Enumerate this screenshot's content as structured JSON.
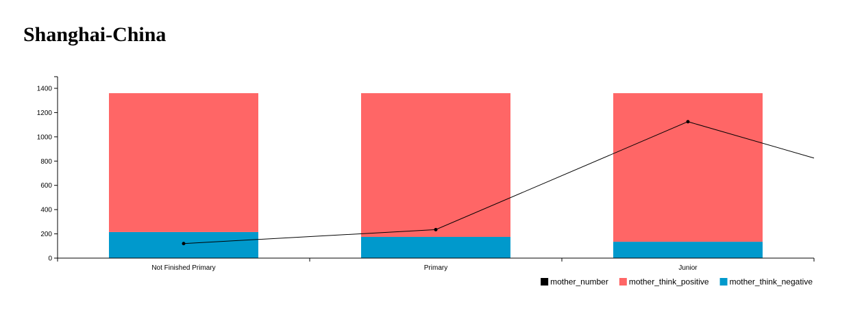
{
  "chart_data": {
    "type": "bar",
    "title": "Shanghai-China",
    "categories": [
      "Not Finished Primary",
      "Primary",
      "Junior"
    ],
    "ylim": [
      0,
      1500
    ],
    "yticks": [
      0,
      200,
      400,
      600,
      800,
      1000,
      1200,
      1400
    ],
    "stack_total": 1360,
    "series": [
      {
        "name": "mother_think_negative",
        "type": "bar",
        "color": "#0099cc",
        "values": [
          215,
          175,
          135
        ]
      },
      {
        "name": "mother_think_positive",
        "type": "bar",
        "color": "#ff6666",
        "values": [
          1145,
          1185,
          1225
        ]
      },
      {
        "name": "mother_number",
        "type": "line",
        "color": "#000000",
        "values": [
          120,
          235,
          1125
        ],
        "trailing_value": 825
      }
    ],
    "legend": [
      "mother_number",
      "mother_think_positive",
      "mother_think_negative"
    ],
    "legend_position": "bottom-right",
    "grid": false
  }
}
